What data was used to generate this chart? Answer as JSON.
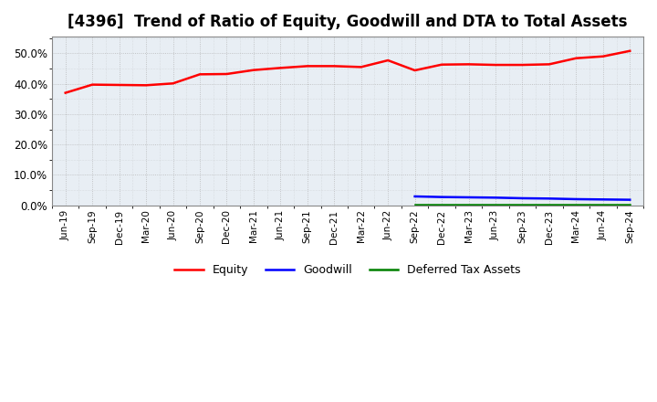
{
  "title": "[4396]  Trend of Ratio of Equity, Goodwill and DTA to Total Assets",
  "x_labels": [
    "Jun-19",
    "Sep-19",
    "Dec-19",
    "Mar-20",
    "Jun-20",
    "Sep-20",
    "Dec-20",
    "Mar-21",
    "Jun-21",
    "Sep-21",
    "Dec-21",
    "Mar-22",
    "Jun-22",
    "Sep-22",
    "Dec-22",
    "Mar-23",
    "Jun-23",
    "Sep-23",
    "Dec-23",
    "Mar-24",
    "Jun-24",
    "Sep-24"
  ],
  "equity": [
    0.37,
    0.397,
    0.396,
    0.395,
    0.401,
    0.431,
    0.432,
    0.445,
    0.452,
    0.458,
    0.458,
    0.455,
    0.477,
    0.444,
    0.463,
    0.464,
    0.462,
    0.462,
    0.464,
    0.484,
    0.49,
    0.508
  ],
  "goodwill": [
    null,
    null,
    null,
    null,
    null,
    null,
    null,
    null,
    null,
    null,
    null,
    null,
    null,
    0.029,
    0.027,
    0.026,
    0.025,
    0.023,
    0.022,
    0.02,
    0.019,
    0.018
  ],
  "dta": [
    null,
    null,
    null,
    null,
    null,
    null,
    null,
    null,
    null,
    null,
    null,
    null,
    null,
    0.0005,
    0.0005,
    0.0005,
    0.0005,
    0.0005,
    0.0005,
    0.0005,
    0.0005,
    0.0005
  ],
  "equity_color": "#FF0000",
  "goodwill_color": "#0000FF",
  "dta_color": "#008000",
  "ylim": [
    0.0,
    0.555
  ],
  "yticks": [
    0.0,
    0.1,
    0.2,
    0.3,
    0.4,
    0.5
  ],
  "plot_bg_color": "#E8EEF4",
  "fig_bg_color": "#FFFFFF",
  "grid_color": "#AAAAAA",
  "title_fontsize": 12,
  "legend_labels": [
    "Equity",
    "Goodwill",
    "Deferred Tax Assets"
  ]
}
